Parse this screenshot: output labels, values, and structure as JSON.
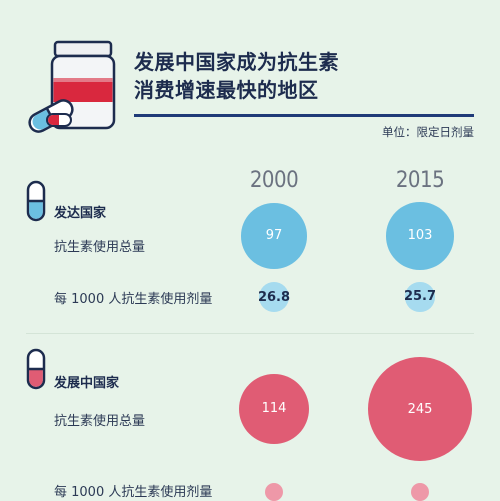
{
  "title_lines": [
    "发展中国家成为抗生素",
    "消费增速最快的地区"
  ],
  "unit_label": "单位：限定日剂量",
  "colors": {
    "developed_big": "#6bbfe1",
    "developed_small": "#a6dbef",
    "developing_big": "#e05c74",
    "developing_small": "#ee98a8",
    "title_rule": "#1f3a78"
  },
  "icons": [
    "pill-bottle-icon",
    "capsule-icon",
    "capsule-blue-icon",
    "capsule-red-icon"
  ],
  "chart_data": {
    "type": "bubble",
    "title": "发展中国家成为抗生素消费增速最快的地区",
    "unit": "单位：限定日剂量",
    "years": [
      "2000",
      "2015"
    ],
    "groups": [
      {
        "name": "发达国家",
        "metrics": [
          {
            "label": "抗生素使用总量",
            "values": [
              97,
              103
            ]
          },
          {
            "label": "每 1000 人抗生素使用剂量",
            "values": [
              26.8,
              25.7
            ]
          }
        ]
      },
      {
        "name": "发展中国家",
        "metrics": [
          {
            "label": "抗生素使用总量",
            "values": [
              114,
              245
            ]
          },
          {
            "label": "每 1000 人抗生素使用剂量",
            "values": [
              null,
              null
            ]
          }
        ]
      }
    ]
  }
}
